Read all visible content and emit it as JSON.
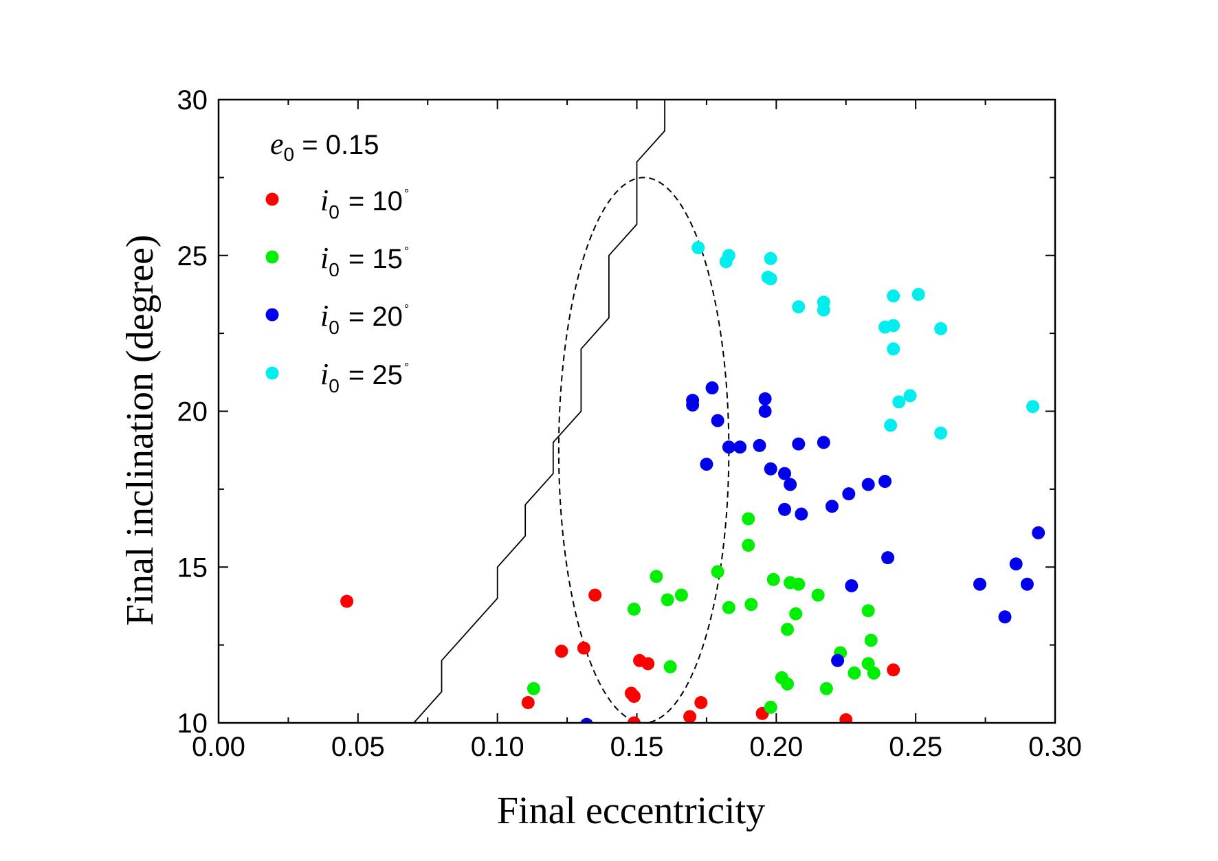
{
  "chart_data": {
    "type": "scatter",
    "xlabel": "Final eccentricity",
    "ylabel": "Final inclination (degree)",
    "xlim": [
      0.0,
      0.3
    ],
    "ylim": [
      10,
      30
    ],
    "x_ticks": [
      "0.00",
      "0.05",
      "0.10",
      "0.15",
      "0.20",
      "0.25",
      "0.30"
    ],
    "y_ticks": [
      "10",
      "15",
      "20",
      "25",
      "30"
    ],
    "legend_title": {
      "symbol": "e",
      "subscript": "0",
      "text": " = 0.15"
    },
    "series": [
      {
        "name": "i0 = 10°",
        "symbol": "i",
        "subscript": "0",
        "value_text": " = 10",
        "degree": "°",
        "color": "#ff0000",
        "points": [
          [
            0.046,
            13.9
          ],
          [
            0.111,
            10.65
          ],
          [
            0.123,
            12.3
          ],
          [
            0.131,
            12.4
          ],
          [
            0.135,
            14.1
          ],
          [
            0.148,
            10.95
          ],
          [
            0.149,
            10.85
          ],
          [
            0.149,
            10.0
          ],
          [
            0.151,
            12.0
          ],
          [
            0.154,
            11.9
          ],
          [
            0.169,
            10.2
          ],
          [
            0.173,
            10.65
          ],
          [
            0.195,
            10.3
          ],
          [
            0.225,
            10.1
          ],
          [
            0.242,
            11.7
          ]
        ]
      },
      {
        "name": "i0 = 15°",
        "symbol": "i",
        "subscript": "0",
        "value_text": " = 15",
        "degree": "°",
        "color": "#00ee00",
        "points": [
          [
            0.113,
            11.1
          ],
          [
            0.149,
            13.65
          ],
          [
            0.157,
            14.7
          ],
          [
            0.161,
            13.95
          ],
          [
            0.162,
            11.8
          ],
          [
            0.166,
            14.1
          ],
          [
            0.179,
            14.85
          ],
          [
            0.183,
            13.7
          ],
          [
            0.19,
            16.55
          ],
          [
            0.19,
            15.7
          ],
          [
            0.191,
            13.8
          ],
          [
            0.198,
            10.5
          ],
          [
            0.199,
            14.6
          ],
          [
            0.202,
            11.45
          ],
          [
            0.204,
            11.25
          ],
          [
            0.204,
            13.0
          ],
          [
            0.205,
            14.5
          ],
          [
            0.207,
            13.5
          ],
          [
            0.208,
            14.45
          ],
          [
            0.215,
            14.1
          ],
          [
            0.218,
            11.1
          ],
          [
            0.223,
            12.25
          ],
          [
            0.228,
            11.6
          ],
          [
            0.233,
            13.6
          ],
          [
            0.233,
            11.9
          ],
          [
            0.234,
            12.65
          ],
          [
            0.235,
            11.6
          ]
        ]
      },
      {
        "name": "i0 = 20°",
        "symbol": "i",
        "subscript": "0",
        "value_text": " = 20",
        "degree": "°",
        "color": "#0000ee",
        "points": [
          [
            0.132,
            9.95
          ],
          [
            0.17,
            20.35
          ],
          [
            0.17,
            20.2
          ],
          [
            0.175,
            18.3
          ],
          [
            0.177,
            20.75
          ],
          [
            0.179,
            19.7
          ],
          [
            0.183,
            18.85
          ],
          [
            0.187,
            18.85
          ],
          [
            0.194,
            18.9
          ],
          [
            0.196,
            20.4
          ],
          [
            0.196,
            20.0
          ],
          [
            0.198,
            18.15
          ],
          [
            0.203,
            18.0
          ],
          [
            0.203,
            16.85
          ],
          [
            0.205,
            17.65
          ],
          [
            0.208,
            18.95
          ],
          [
            0.209,
            16.7
          ],
          [
            0.217,
            19.0
          ],
          [
            0.22,
            16.95
          ],
          [
            0.222,
            12.0
          ],
          [
            0.226,
            17.35
          ],
          [
            0.227,
            14.4
          ],
          [
            0.233,
            17.65
          ],
          [
            0.239,
            17.75
          ],
          [
            0.24,
            15.3
          ],
          [
            0.273,
            14.45
          ],
          [
            0.282,
            13.4
          ],
          [
            0.286,
            15.1
          ],
          [
            0.29,
            14.45
          ],
          [
            0.294,
            16.1
          ]
        ]
      },
      {
        "name": "i0 = 25°",
        "symbol": "i",
        "subscript": "0",
        "value_text": " = 25",
        "degree": "°",
        "color": "#00eeee",
        "points": [
          [
            0.172,
            25.25
          ],
          [
            0.182,
            24.8
          ],
          [
            0.183,
            25.0
          ],
          [
            0.197,
            24.3
          ],
          [
            0.198,
            24.9
          ],
          [
            0.198,
            24.25
          ],
          [
            0.208,
            23.35
          ],
          [
            0.217,
            23.5
          ],
          [
            0.217,
            23.25
          ],
          [
            0.239,
            22.7
          ],
          [
            0.242,
            23.7
          ],
          [
            0.242,
            22.75
          ],
          [
            0.242,
            22.0
          ],
          [
            0.241,
            19.55
          ],
          [
            0.244,
            20.3
          ],
          [
            0.248,
            20.5
          ],
          [
            0.251,
            23.75
          ],
          [
            0.259,
            22.65
          ],
          [
            0.259,
            19.3
          ],
          [
            0.292,
            20.15
          ]
        ]
      }
    ],
    "boundary_line": {
      "name": "boundary",
      "color": "#000000",
      "points": [
        [
          0.07,
          10
        ],
        [
          0.08,
          11
        ],
        [
          0.08,
          12
        ],
        [
          0.1,
          14
        ],
        [
          0.1,
          15
        ],
        [
          0.11,
          16
        ],
        [
          0.11,
          17
        ],
        [
          0.12,
          18
        ],
        [
          0.12,
          19
        ],
        [
          0.13,
          20
        ],
        [
          0.13,
          22
        ],
        [
          0.14,
          23
        ],
        [
          0.14,
          25
        ],
        [
          0.15,
          26
        ],
        [
          0.15,
          28
        ],
        [
          0.16,
          29
        ],
        [
          0.16,
          30
        ]
      ]
    },
    "ellipse": {
      "name": "dashed-region",
      "center": [
        0.1525,
        18.75
      ],
      "radius_x": 0.0305,
      "radius_y": 8.75
    }
  }
}
